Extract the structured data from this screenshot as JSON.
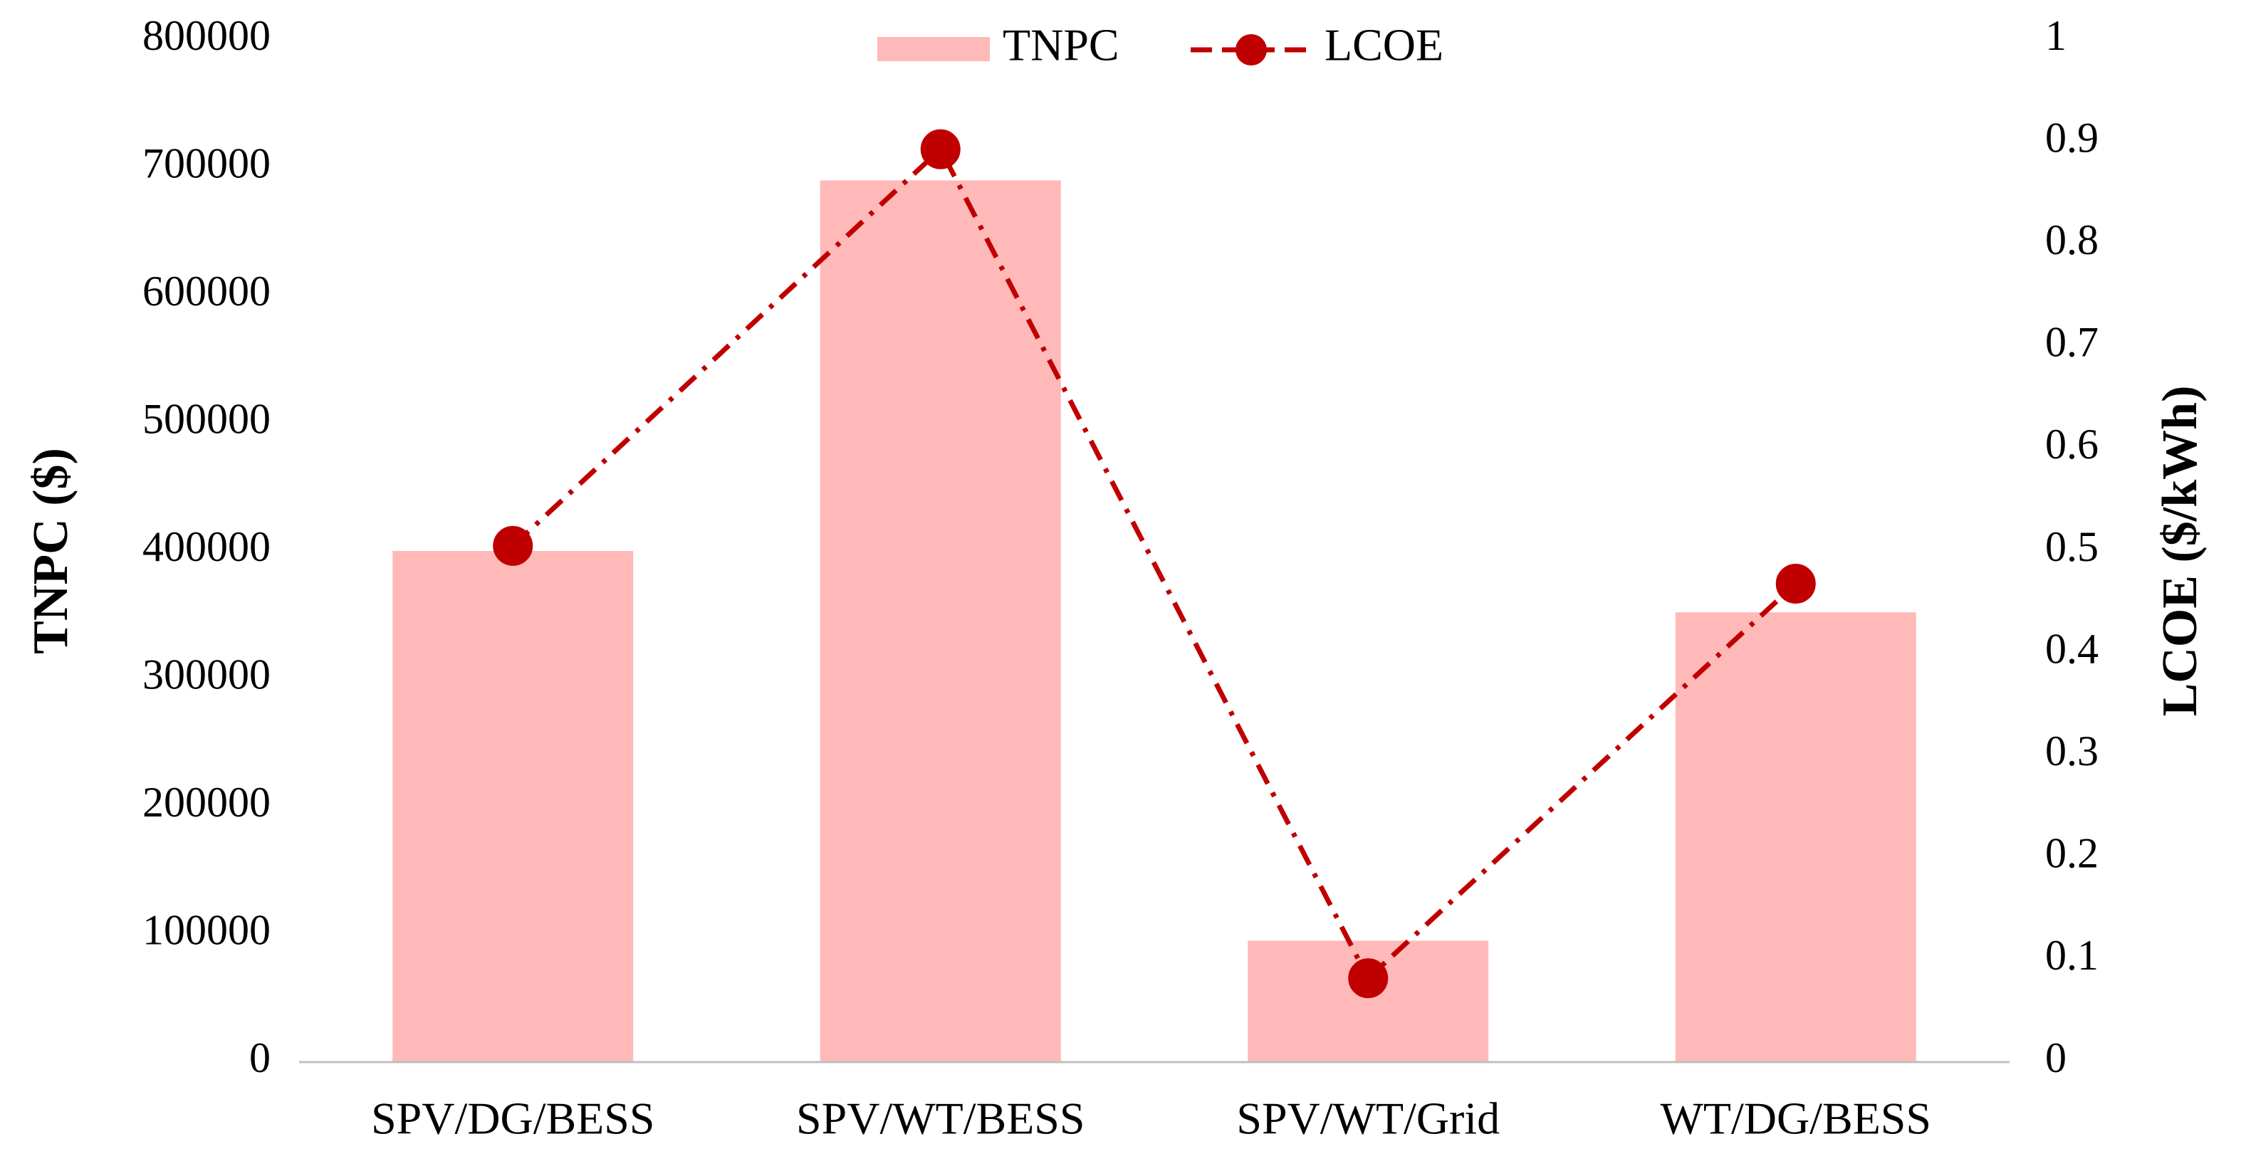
{
  "chart_data": {
    "type": "bar",
    "categories": [
      "SPV/DG/BESS",
      "SPV/WT/BESS",
      "SPV/WT/Grid",
      "WT/DG/BESS"
    ],
    "series": [
      {
        "name": "TNPC",
        "type": "bar",
        "axis": "left",
        "values": [
          400000,
          690000,
          95000,
          352000
        ],
        "color": "#ffb9b9"
      },
      {
        "name": "LCOE",
        "type": "line",
        "axis": "right",
        "values": [
          0.505,
          0.893,
          0.082,
          0.468
        ],
        "color": "#c00000",
        "line_style": "dash-dot",
        "marker": "circle"
      }
    ],
    "ylabel": "TNPC ($)",
    "y2label": "LCOE ($/kWh)",
    "ylim": [
      0,
      800000
    ],
    "y2lim": [
      0,
      1
    ],
    "yticks": [
      "800000",
      "700000",
      "600000",
      "500000",
      "400000",
      "300000",
      "200000",
      "100000",
      "0"
    ],
    "y2ticks": [
      "1",
      "0.9",
      "0.8",
      "0.7",
      "0.6",
      "0.5",
      "0.4",
      "0.3",
      "0.2",
      "0.1",
      "0"
    ],
    "legend_position": "top-center",
    "grid": false
  }
}
